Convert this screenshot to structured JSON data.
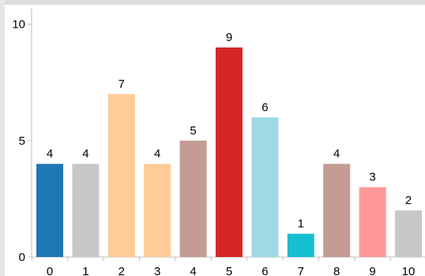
{
  "chart_data": {
    "type": "bar",
    "categories": [
      "0",
      "1",
      "2",
      "3",
      "4",
      "5",
      "6",
      "7",
      "8",
      "9",
      "10"
    ],
    "values": [
      4,
      4,
      7,
      4,
      5,
      9,
      6,
      1,
      4,
      3,
      2
    ],
    "data_labels": [
      "4",
      "4",
      "7",
      "4",
      "5",
      "9",
      "6",
      "1",
      "4",
      "3",
      "2"
    ],
    "colors": [
      "#1f77b4",
      "#c7c7c7",
      "#ffcc99",
      "#ffcc99",
      "#c49c94",
      "#d62728",
      "#9edae5",
      "#17becf",
      "#c49c94",
      "#ff9896",
      "#c7c7c7"
    ],
    "y_ticks": [
      0,
      5,
      10
    ],
    "y_tick_labels": [
      "0",
      "5",
      "10"
    ],
    "ylim": [
      0,
      10.7
    ],
    "title": "",
    "xlabel": "",
    "ylabel": "",
    "grid": false,
    "legend": "none"
  }
}
